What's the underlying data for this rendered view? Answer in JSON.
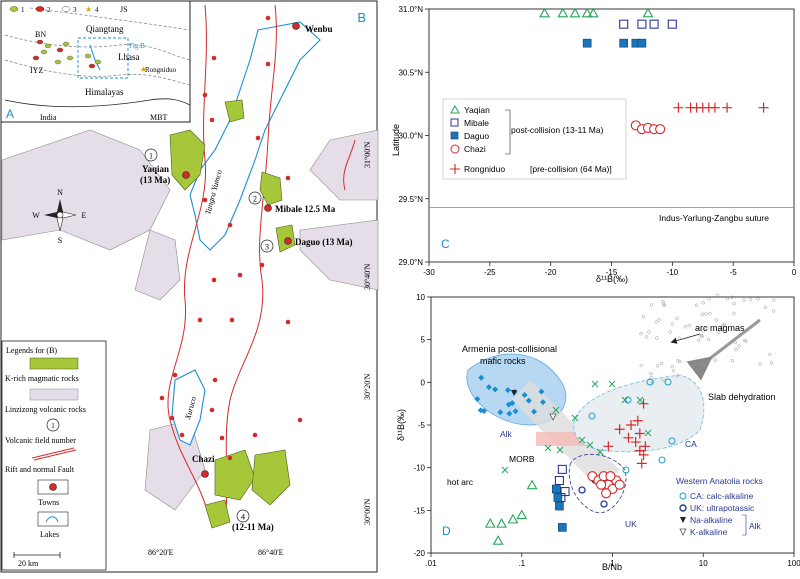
{
  "panelA": {
    "label": "A",
    "regions": [
      "Qiangtang",
      "Lhasa",
      "Himalayas",
      "India"
    ],
    "abbrev": [
      "JS",
      "BN",
      "IYZ",
      "MBT"
    ],
    "fig_ref": "Fig.B",
    "locality": "Rongniduo",
    "legend_nums": [
      "1",
      "2",
      "3",
      "4"
    ]
  },
  "panelB": {
    "label": "B",
    "towns": [
      "Wenbu",
      "Chazi"
    ],
    "fields": [
      {
        "num": "1",
        "name": "Yaqian",
        "age": "(13 Ma)"
      },
      {
        "num": "2",
        "name": "Mibale 12.5 Ma",
        "age": ""
      },
      {
        "num": "3",
        "name": "Daguo (13 Ma)",
        "age": ""
      },
      {
        "num": "4",
        "name": "",
        "age": "(12-11 Ma)"
      }
    ],
    "river": "Tangra Yumco",
    "lake2": "Xuruco",
    "lat_ticks": [
      "31°00'N",
      "30°40'N",
      "30°20'N",
      "30°00'N"
    ],
    "lon_ticks": [
      "86°20'E",
      "86°40'E"
    ],
    "compass": {
      "n": "N",
      "s": "S",
      "e": "E",
      "w": "W"
    },
    "scale": "20 km",
    "legend_title": "Legends for (B)",
    "legend": [
      "K-rich magmatic rocks",
      "Linzizong volcanic rocks",
      "Volcanic field number",
      "Rift and normal Fault",
      "Towns",
      "Lakes"
    ]
  },
  "panelC": {
    "label": "C",
    "suture": "Indus-Yarlung-Zangbu suture",
    "group_label": "post-collision (13-11 Ma)",
    "legend": [
      {
        "name": "Yaqian",
        "note": ""
      },
      {
        "name": "Mibale",
        "note": ""
      },
      {
        "name": "Daguo",
        "note": ""
      },
      {
        "name": "Chazi",
        "note": ""
      },
      {
        "name": "Rongniduo",
        "note": "[pre-collision (64 Ma)]"
      }
    ]
  },
  "panelD": {
    "label": "D",
    "annotations": [
      "arc magmas",
      "Armenia post-collisional",
      "mafic rocks",
      "Slab dehydration",
      "Alk",
      "MORB",
      "hot arc",
      "CA",
      "UK"
    ],
    "legend_title": "Western Anatolia rocks",
    "legend": [
      "CA: calc-alkaline",
      "UK: ultrapotassic",
      "Na-alkaline",
      "K-alkaline"
    ],
    "alk": "Alk"
  },
  "chart_data": [
    {
      "type": "scatter",
      "panel": "C",
      "xlabel": "δ¹¹B(‰)",
      "ylabel": "Latitude",
      "xlim": [
        -30,
        0
      ],
      "ylim": [
        29.0,
        31.0
      ],
      "x_ticks": [
        "-30",
        "-25",
        "-20",
        "-15",
        "-10",
        "-5",
        "0"
      ],
      "y_ticks": [
        "29.0°N",
        "29.5°N",
        "30.0°N",
        "30.5°N",
        "31.0°N"
      ],
      "suture_lat": 29.43,
      "series": [
        {
          "name": "Yaqian",
          "marker": "triangle-open",
          "color": "#27a55a",
          "points": [
            [
              -20.5,
              30.97
            ],
            [
              -19.0,
              30.97
            ],
            [
              -18.0,
              30.97
            ],
            [
              -17.0,
              30.97
            ],
            [
              -16.5,
              30.97
            ],
            [
              -12.0,
              30.97
            ]
          ]
        },
        {
          "name": "Mibale",
          "marker": "square-open",
          "color": "#2b3990",
          "points": [
            [
              -14.0,
              30.88
            ],
            [
              -12.5,
              30.88
            ],
            [
              -11.5,
              30.88
            ],
            [
              -10.0,
              30.88
            ]
          ]
        },
        {
          "name": "Daguo",
          "marker": "square-filled",
          "color": "#1b75bb",
          "points": [
            [
              -17.0,
              30.73
            ],
            [
              -14.0,
              30.73
            ],
            [
              -13.0,
              30.73
            ],
            [
              -12.5,
              30.73
            ]
          ]
        },
        {
          "name": "Chazi",
          "marker": "circle-open",
          "color": "#d42a2a",
          "points": [
            [
              -13.0,
              30.08
            ],
            [
              -12.5,
              30.05
            ],
            [
              -12.0,
              30.06
            ],
            [
              -11.5,
              30.05
            ],
            [
              -11.0,
              30.05
            ]
          ]
        },
        {
          "name": "Rongniduo",
          "marker": "plus",
          "color": "#d42a2a",
          "points": [
            [
              -9.5,
              30.22
            ],
            [
              -8.5,
              30.22
            ],
            [
              -8.0,
              30.22
            ],
            [
              -7.5,
              30.22
            ],
            [
              -7.0,
              30.22
            ],
            [
              -6.5,
              30.22
            ],
            [
              -5.5,
              30.22
            ],
            [
              -2.5,
              30.22
            ]
          ]
        }
      ]
    },
    {
      "type": "scatter",
      "panel": "D",
      "xlabel": "B/Nb",
      "ylabel": "δ¹¹B(‰)",
      "xscale": "log",
      "xlim": [
        0.01,
        100
      ],
      "ylim": [
        -20,
        10
      ],
      "x_ticks": [
        ".01",
        ".1",
        "1",
        "10",
        "100"
      ],
      "y_ticks": [
        "10",
        "5",
        "0",
        "-5",
        "-10",
        "-15",
        "-20"
      ],
      "series": [
        {
          "name": "Yaqian",
          "marker": "triangle-open",
          "color": "#27a55a",
          "points": [
            [
              0.045,
              -16.5
            ],
            [
              0.06,
              -16.5
            ],
            [
              0.08,
              -16.0
            ],
            [
              0.1,
              -15.5
            ],
            [
              0.055,
              -18.5
            ],
            [
              0.13,
              -12.0
            ]
          ]
        },
        {
          "name": "Mibale",
          "marker": "square-open",
          "color": "#2b3990",
          "points": [
            [
              0.28,
              -10.2
            ],
            [
              0.26,
              -11.5
            ],
            [
              0.3,
              -12.8
            ],
            [
              0.27,
              -13.5
            ]
          ]
        },
        {
          "name": "Daguo",
          "marker": "square-filled",
          "color": "#1b75bb",
          "points": [
            [
              0.24,
              -12.5
            ],
            [
              0.25,
              -13.5
            ],
            [
              0.26,
              -14.5
            ],
            [
              0.28,
              -17.0
            ]
          ]
        },
        {
          "name": "Chazi",
          "marker": "circle-open",
          "color": "#d42a2a",
          "points": [
            [
              0.6,
              -11.0
            ],
            [
              0.7,
              -11.5
            ],
            [
              0.8,
              -11.0
            ],
            [
              0.9,
              -12.0
            ],
            [
              1.0,
              -12.5
            ],
            [
              0.85,
              -13.0
            ],
            [
              0.75,
              -12.0
            ],
            [
              1.1,
              -11.5
            ],
            [
              0.95,
              -11.0
            ],
            [
              1.2,
              -12.0
            ]
          ]
        },
        {
          "name": "Rongniduo",
          "marker": "plus",
          "color": "#d42a2a",
          "points": [
            [
              0.9,
              -7.5
            ],
            [
              1.2,
              -5.5
            ],
            [
              1.5,
              -6.5
            ],
            [
              1.8,
              -7.0
            ],
            [
              2.0,
              -8.0
            ],
            [
              2.1,
              -9.5
            ],
            [
              1.6,
              -5.0
            ],
            [
              2.2,
              -2.5
            ],
            [
              1.9,
              -4.5
            ],
            [
              2.0,
              -6.0
            ],
            [
              2.3,
              -7.5
            ],
            [
              2.2,
              -8.5
            ]
          ]
        }
      ]
    }
  ]
}
